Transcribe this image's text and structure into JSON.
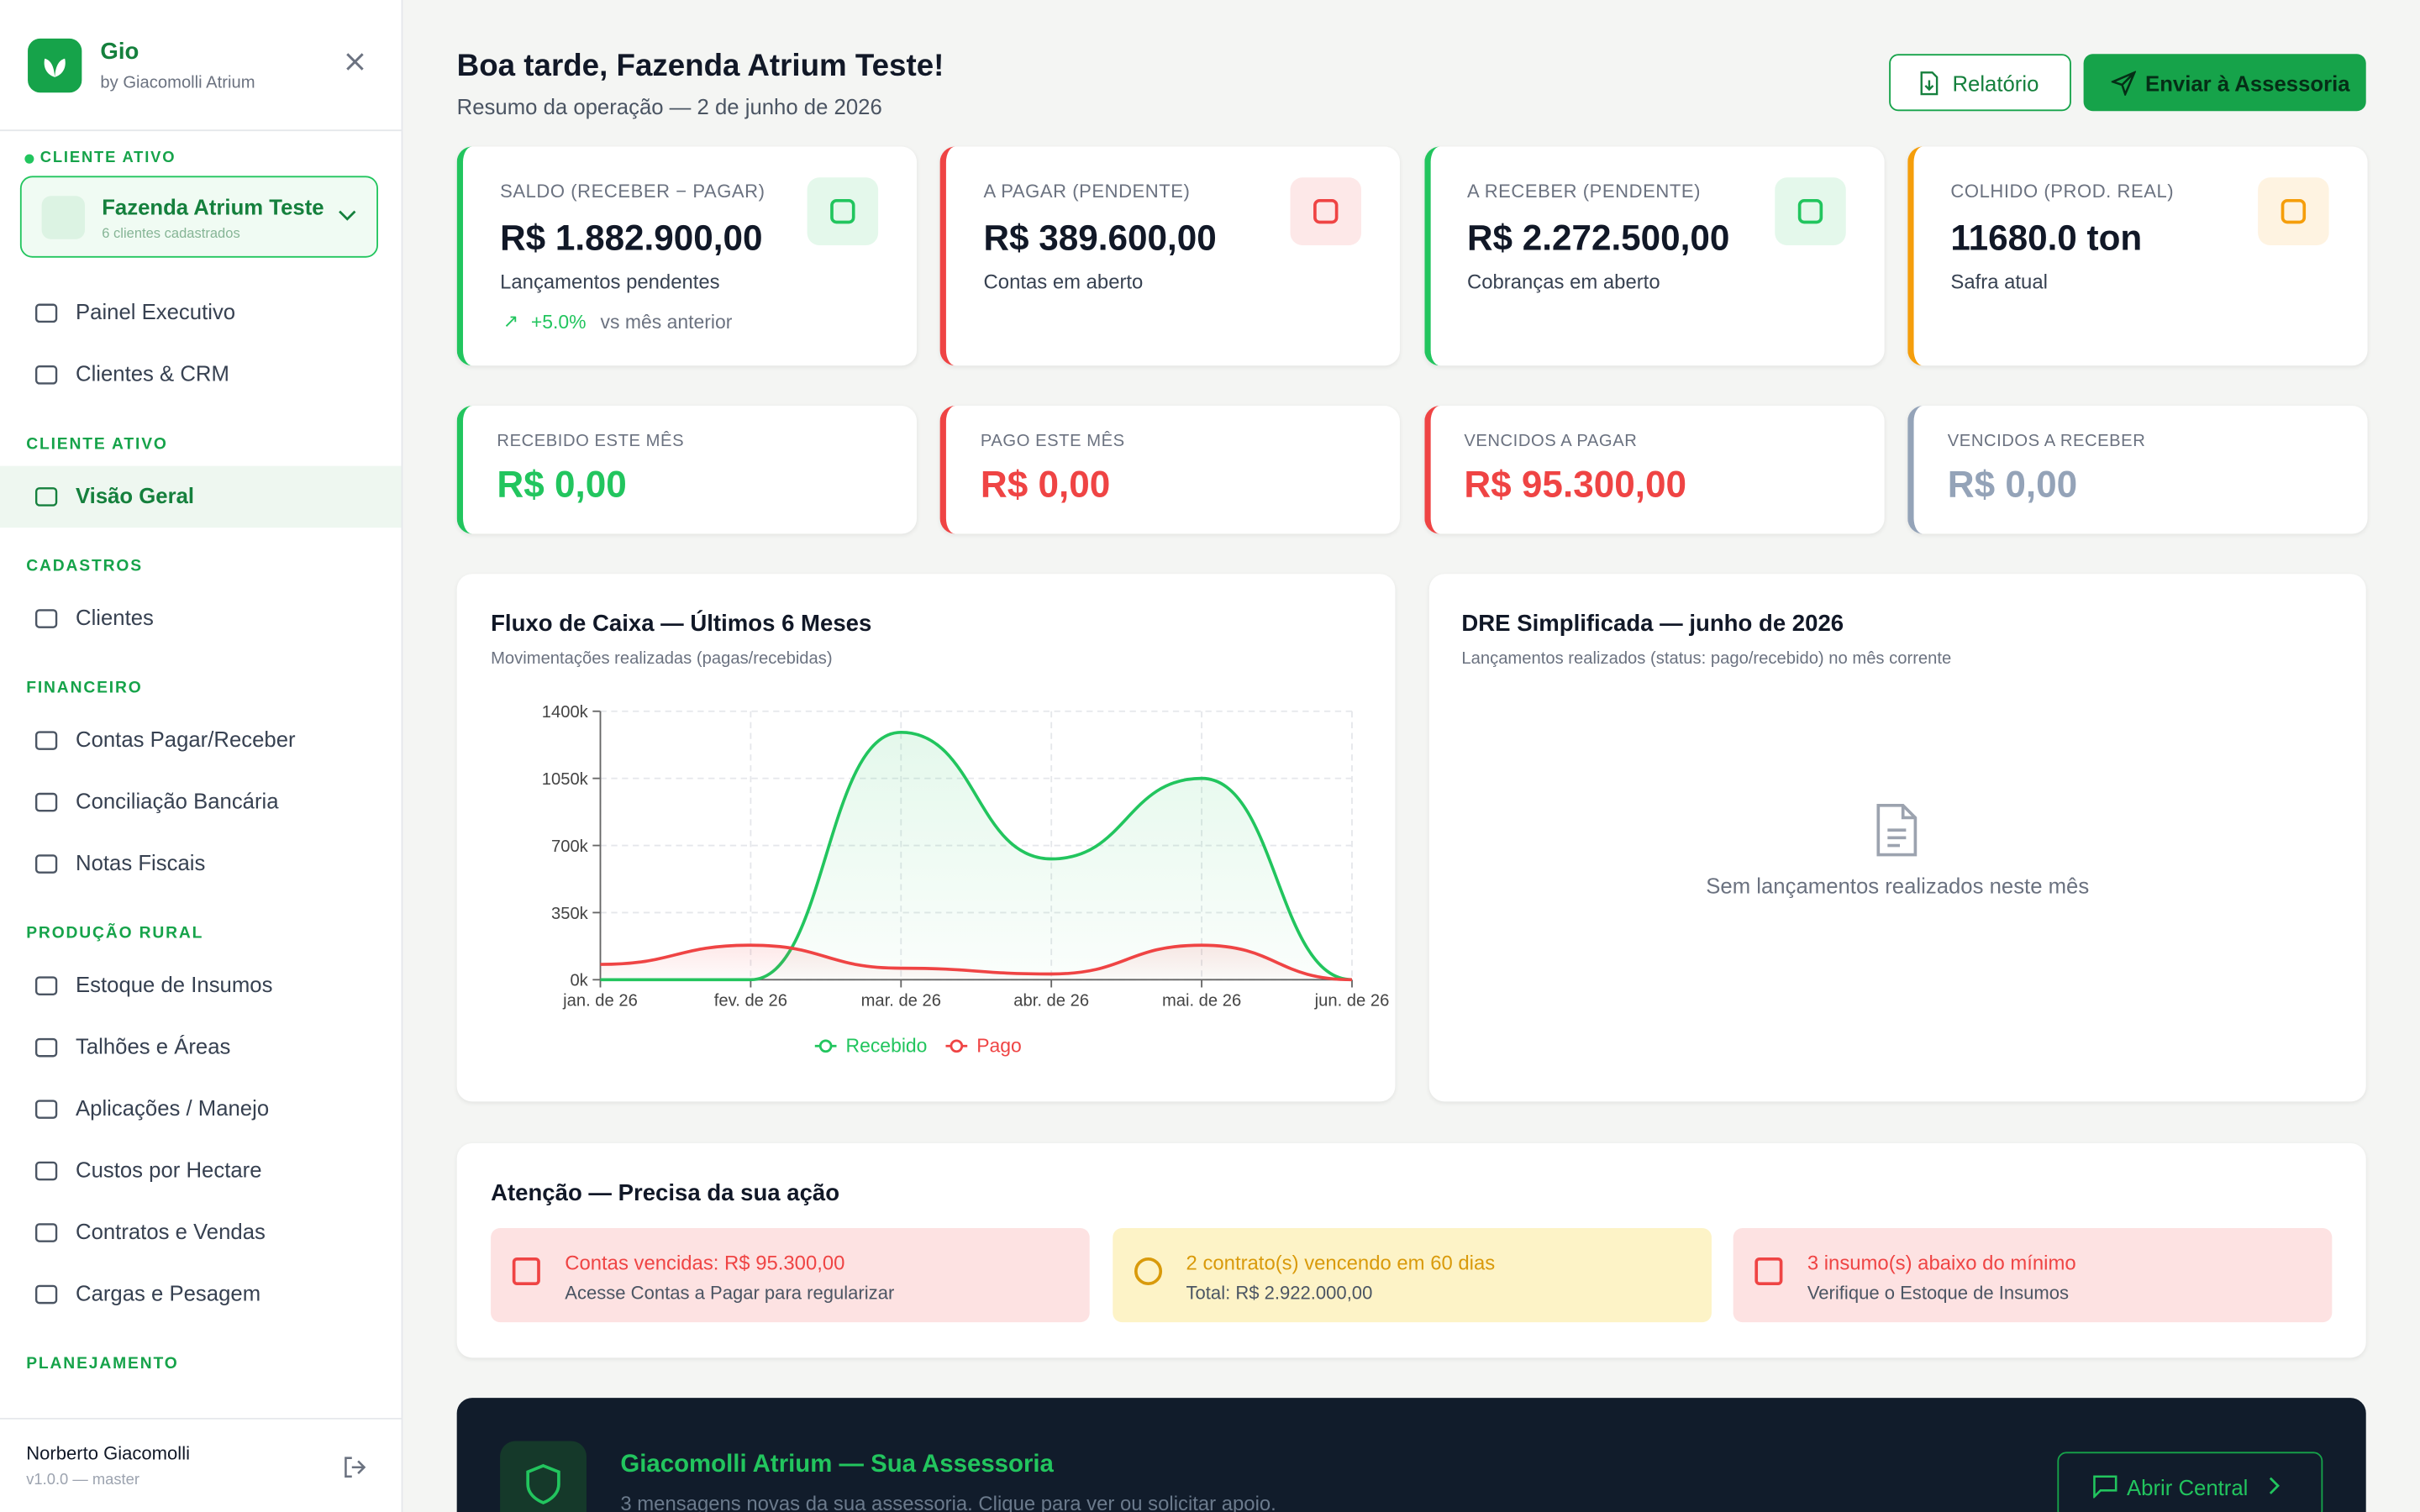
{
  "sidebar": {
    "brand": "Gio",
    "brand_sub": "by Giacomolli Atrium",
    "active_client_label": "CLIENTE ATIVO",
    "active_client": "Fazenda Atrium Teste",
    "active_client_sub": "6 clientes cadastrados",
    "top_items": [
      "Painel Executivo",
      "Clientes & CRM"
    ],
    "sections": [
      {
        "title": "CLIENTE ATIVO",
        "items": [
          "Visão Geral"
        ]
      },
      {
        "title": "CADASTROS",
        "items": [
          "Clientes"
        ]
      },
      {
        "title": "FINANCEIRO",
        "items": [
          "Contas Pagar/Receber",
          "Conciliação Bancária",
          "Notas Fiscais"
        ]
      },
      {
        "title": "PRODUÇÃO RURAL",
        "items": [
          "Estoque de Insumos",
          "Talhões e Áreas",
          "Aplicações / Manejo",
          "Custos por Hectare",
          "Contratos e Vendas",
          "Cargas e Pesagem"
        ]
      },
      {
        "title": "PLANEJAMENTO",
        "items": []
      }
    ],
    "user": "Norberto Giacomolli",
    "version": "v1.0.0 — master"
  },
  "header": {
    "greeting": "Boa tarde, Fazenda Atrium Teste!",
    "subtitle": "Resumo da operação — 2 de junho de 2026",
    "buttons": [
      "Relatório",
      "Enviar à Assessoria"
    ]
  },
  "kpis": [
    {
      "label": "SALDO (RECEBER − PAGAR)",
      "value": "R$ 1.882.900,00",
      "note": "Lançamentos pendentes",
      "trend": "+5.0%",
      "trend_text": "vs mês anterior",
      "color": "#22c55e"
    },
    {
      "label": "A PAGAR (PENDENTE)",
      "value": "R$ 389.600,00",
      "note": "Contas em aberto",
      "color": "#ef4444"
    },
    {
      "label": "A RECEBER (PENDENTE)",
      "value": "R$ 2.272.500,00",
      "note": "Cobranças em aberto",
      "color": "#22c55e"
    },
    {
      "label": "COLHIDO (PROD. REAL)",
      "value": "11680.0 ton",
      "note": "Safra atual",
      "color": "#f59e0b"
    }
  ],
  "summary": [
    {
      "label": "RECEBIDO ESTE MÊS",
      "value": "R$ 0,00",
      "color": "#22c55e"
    },
    {
      "label": "PAGO ESTE MÊS",
      "value": "R$ 0,00",
      "color": "#ef4444"
    },
    {
      "label": "VENCIDOS A PAGAR",
      "value": "R$ 95.300,00",
      "color": "#ef4444"
    },
    {
      "label": "VENCIDOS A RECEBER",
      "value": "R$ 0,00",
      "color": "#94a3b8"
    }
  ],
  "cash_flow_chart": {
    "type": "line",
    "title": "Fluxo de Caixa — Últimos 6 Meses",
    "subtitle": "Movimentações realizadas (pagas/recebidas)",
    "categories": [
      "jan. de 26",
      "fev. de 26",
      "mar. de 26",
      "abr. de 26",
      "mai. de 26",
      "jun. de 26"
    ],
    "series": [
      {
        "name": "Recebido",
        "color": "#22c55e",
        "values": [
          0,
          0,
          1290000,
          630000,
          1050000,
          0
        ]
      },
      {
        "name": "Pago",
        "color": "#ef4444",
        "values": [
          80000,
          180000,
          60000,
          30000,
          180000,
          0
        ]
      }
    ],
    "ylim": [
      0,
      1400000
    ],
    "yticks": [
      {
        "value": 0,
        "label": "0k"
      },
      {
        "value": 350000,
        "label": "350k"
      },
      {
        "value": 700000,
        "label": "700k"
      },
      {
        "value": 1050000,
        "label": "1050k"
      },
      {
        "value": 1400000,
        "label": "1400k"
      }
    ],
    "grid": true
  },
  "dre": {
    "title": "DRE Simplificada — junho de 2026",
    "subtitle": "Lançamentos realizados (status: pago/recebido) no mês corrente",
    "empty_text": "Sem lançamentos realizados neste mês"
  },
  "attention": {
    "title": "Atenção — Precisa da sua ação",
    "alerts": [
      {
        "title": "Contas vencidas: R$ 95.300,00",
        "detail": "Acesse Contas a Pagar para regularizar",
        "color": "#ef4444"
      },
      {
        "title": "2 contrato(s) vencendo em 60 dias",
        "detail": "Total: R$ 2.922.000,00",
        "color": "#d99a0b"
      },
      {
        "title": "3 insumo(s) abaixo do mínimo",
        "detail": "Verifique o Estoque de Insumos",
        "color": "#ef4444"
      }
    ]
  },
  "banner": {
    "title": "Giacomolli Atrium — Sua Assessoria",
    "subtitle": "3 mensagens novas da sua assessoria. Clique para ver ou solicitar apoio.",
    "button": "Abrir Central"
  }
}
